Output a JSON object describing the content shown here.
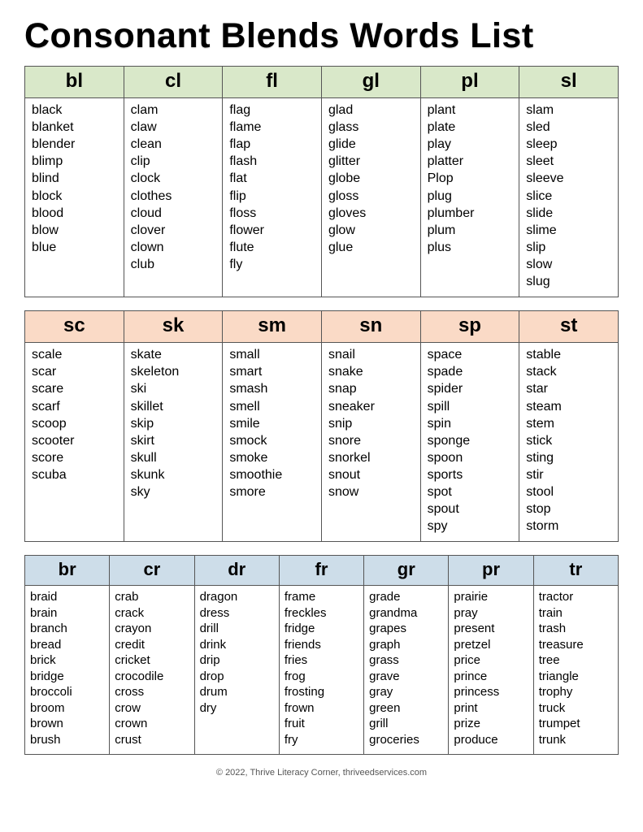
{
  "title": "Consonant Blends Words List",
  "footer": "© 2022, Thrive Literacy Corner, thriveedservices.com",
  "colors": {
    "header_green": "#d9e8c9",
    "header_peach": "#fadac6",
    "header_blue": "#cddde9",
    "border": "#555555",
    "background": "#ffffff",
    "text": "#000000"
  },
  "tables": [
    {
      "color_key": "header_green",
      "columns": [
        {
          "label": "bl",
          "words": [
            "black",
            "blanket",
            "blender",
            "blimp",
            "blind",
            "block",
            "blood",
            "blow",
            "blue"
          ]
        },
        {
          "label": "cl",
          "words": [
            "clam",
            "claw",
            "clean",
            "clip",
            "clock",
            "clothes",
            "cloud",
            "clover",
            "clown",
            "club"
          ]
        },
        {
          "label": "fl",
          "words": [
            "flag",
            "flame",
            "flap",
            "flash",
            "flat",
            "flip",
            "floss",
            "flower",
            "flute",
            "fly"
          ]
        },
        {
          "label": "gl",
          "words": [
            "glad",
            "glass",
            "glide",
            "glitter",
            "globe",
            "gloss",
            "gloves",
            "glow",
            "glue"
          ]
        },
        {
          "label": "pl",
          "words": [
            "plant",
            "plate",
            "play",
            "platter",
            "Plop",
            "plug",
            "plumber",
            "plum",
            "plus"
          ]
        },
        {
          "label": "sl",
          "words": [
            "slam",
            "sled",
            "sleep",
            "sleet",
            "sleeve",
            "slice",
            "slide",
            "slime",
            "slip",
            "slow",
            "slug"
          ]
        }
      ]
    },
    {
      "color_key": "header_peach",
      "columns": [
        {
          "label": "sc",
          "words": [
            "scale",
            "scar",
            "scare",
            "scarf",
            "scoop",
            "scooter",
            "score",
            "scuba"
          ]
        },
        {
          "label": "sk",
          "words": [
            "skate",
            "skeleton",
            "ski",
            "skillet",
            "skip",
            "skirt",
            "skull",
            "skunk",
            "sky"
          ]
        },
        {
          "label": "sm",
          "words": [
            "small",
            "smart",
            "smash",
            "smell",
            "smile",
            "smock",
            "smoke",
            "smoothie",
            "smore"
          ]
        },
        {
          "label": "sn",
          "words": [
            "snail",
            "snake",
            "snap",
            "sneaker",
            "snip",
            "snore",
            "snorkel",
            "snout",
            "snow"
          ]
        },
        {
          "label": "sp",
          "words": [
            "space",
            "spade",
            "spider",
            "spill",
            "spin",
            "sponge",
            "spoon",
            "sports",
            "spot",
            "spout",
            "spy"
          ]
        },
        {
          "label": "st",
          "words": [
            "stable",
            "stack",
            "star",
            "steam",
            "stem",
            "stick",
            "sting",
            "stir",
            "stool",
            "stop",
            "storm"
          ]
        }
      ]
    },
    {
      "color_key": "header_blue",
      "columns": [
        {
          "label": "br",
          "words": [
            "braid",
            "brain",
            "branch",
            "bread",
            "brick",
            "bridge",
            "broccoli",
            "broom",
            "brown",
            "brush"
          ]
        },
        {
          "label": "cr",
          "words": [
            "crab",
            "crack",
            "crayon",
            "credit",
            "cricket",
            "crocodile",
            "cross",
            "crow",
            "crown",
            "crust"
          ]
        },
        {
          "label": "dr",
          "words": [
            "dragon",
            "dress",
            "drill",
            "drink",
            "drip",
            "drop",
            "drum",
            "dry"
          ]
        },
        {
          "label": "fr",
          "words": [
            "frame",
            "freckles",
            "fridge",
            "friends",
            "fries",
            "frog",
            "frosting",
            "frown",
            "fruit",
            "fry"
          ]
        },
        {
          "label": "gr",
          "words": [
            "grade",
            "grandma",
            "grapes",
            "graph",
            "grass",
            "grave",
            "gray",
            "green",
            "grill",
            "groceries"
          ]
        },
        {
          "label": "pr",
          "words": [
            "prairie",
            "pray",
            "present",
            "pretzel",
            "price",
            "prince",
            "princess",
            "print",
            "prize",
            "produce"
          ]
        },
        {
          "label": "tr",
          "words": [
            "tractor",
            "train",
            "trash",
            "treasure",
            "tree",
            "triangle",
            "trophy",
            "truck",
            "trumpet",
            "trunk"
          ]
        }
      ]
    }
  ]
}
